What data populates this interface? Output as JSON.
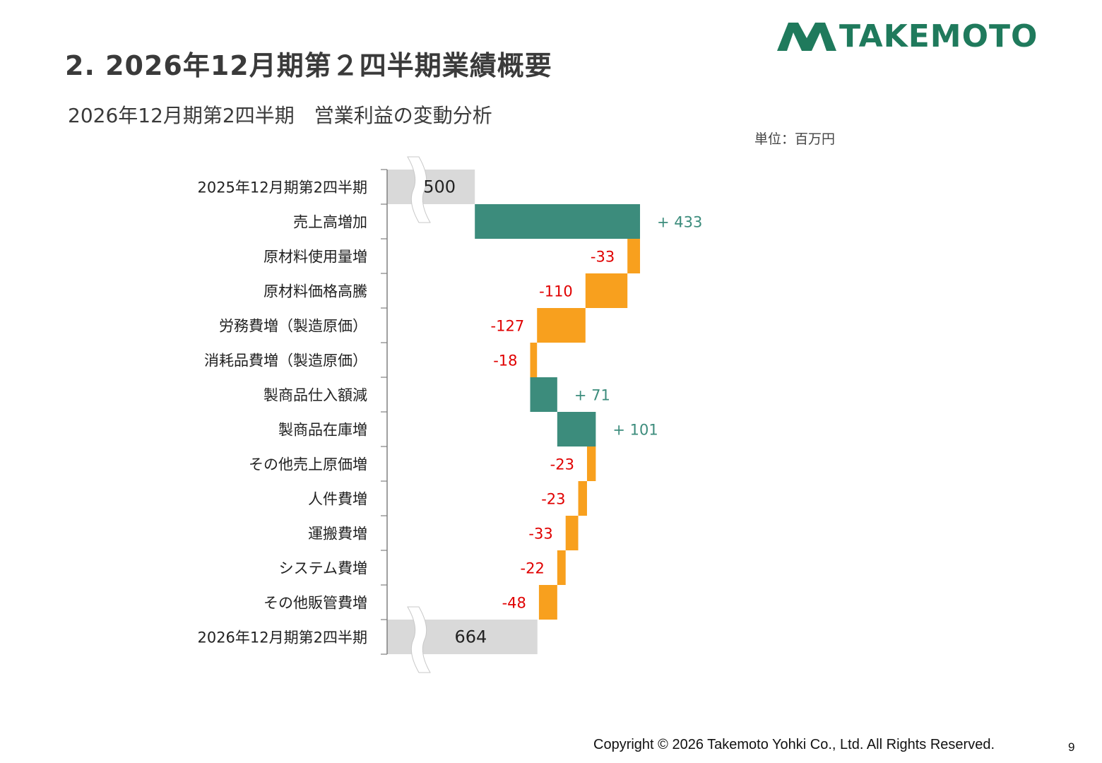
{
  "header": {
    "title": "2. 2026年12月期第２四半期業績概要",
    "chart_title": "2026年12月期第2四半期　営業利益の変動分析",
    "unit": "単位：百万円",
    "logo_text": "TAKEMOTO"
  },
  "footer": {
    "copyright": "Copyright © 2026 Takemoto Yohki Co., Ltd. All Rights Reserved.",
    "page_number": "9"
  },
  "colors": {
    "total": "#d9d9d9",
    "increase": "#3c8c7c",
    "decrease": "#f8a01e",
    "increase_label": "#3c8c7c",
    "decrease_label": "#e00000",
    "total_label": "#222222",
    "axis": "#808080",
    "logo": "#1f7a5c"
  },
  "chart_data": {
    "type": "waterfall",
    "orientation": "horizontal",
    "unit": "百万円",
    "x_axis_broken": true,
    "xlim": [
      270,
      1300
    ],
    "categories": [
      "2025年12月期第2四半期",
      "売上高増加",
      "原材料使用量増",
      "原材料価格高騰",
      "労務費増（製造原価）",
      "消耗品費増（製造原価）",
      "製商品仕入額減",
      "製商品在庫増",
      "その他売上原価増",
      "人件費増",
      "運搬費増",
      "システム費増",
      "その他販管費増",
      "2026年12月期第2四半期"
    ],
    "values": [
      500,
      433,
      -33,
      -110,
      -127,
      -18,
      71,
      101,
      -23,
      -23,
      -33,
      -22,
      -48,
      664
    ],
    "kinds": [
      "total",
      "change",
      "change",
      "change",
      "change",
      "change",
      "change",
      "change",
      "change",
      "change",
      "change",
      "change",
      "change",
      "total"
    ],
    "labels": [
      "500",
      "+ 433",
      "-33",
      "-110",
      "-127",
      "-18",
      "+ 71",
      "+ 101",
      "-23",
      "-23",
      "-33",
      "-22",
      "-48",
      "664"
    ]
  }
}
